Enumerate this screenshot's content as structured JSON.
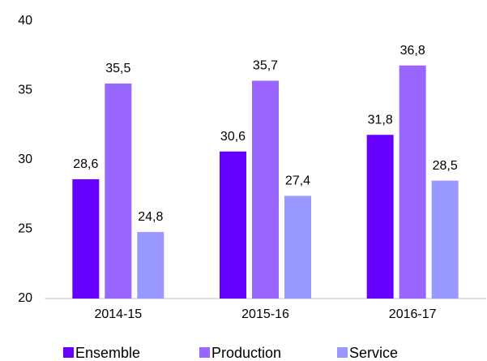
{
  "chart_data": {
    "type": "bar",
    "categories": [
      "2014-15",
      "2015-16",
      "2016-17"
    ],
    "series": [
      {
        "name": "Ensemble",
        "color": "#6600ff",
        "values": [
          28.6,
          30.6,
          31.8
        ],
        "value_labels": [
          "28,6",
          "30,6",
          "31,8"
        ]
      },
      {
        "name": "Production",
        "color": "#9966ff",
        "values": [
          35.5,
          35.7,
          36.8
        ],
        "value_labels": [
          "35,5",
          "35,7",
          "36,8"
        ]
      },
      {
        "name": "Service",
        "color": "#9999ff",
        "values": [
          24.8,
          27.4,
          28.5
        ],
        "value_labels": [
          "24,8",
          "27,4",
          "28,5"
        ]
      }
    ],
    "ylim": [
      20,
      40
    ],
    "yticks": [
      20,
      25,
      30,
      35,
      40
    ],
    "grid": false,
    "legend": "bottom"
  }
}
